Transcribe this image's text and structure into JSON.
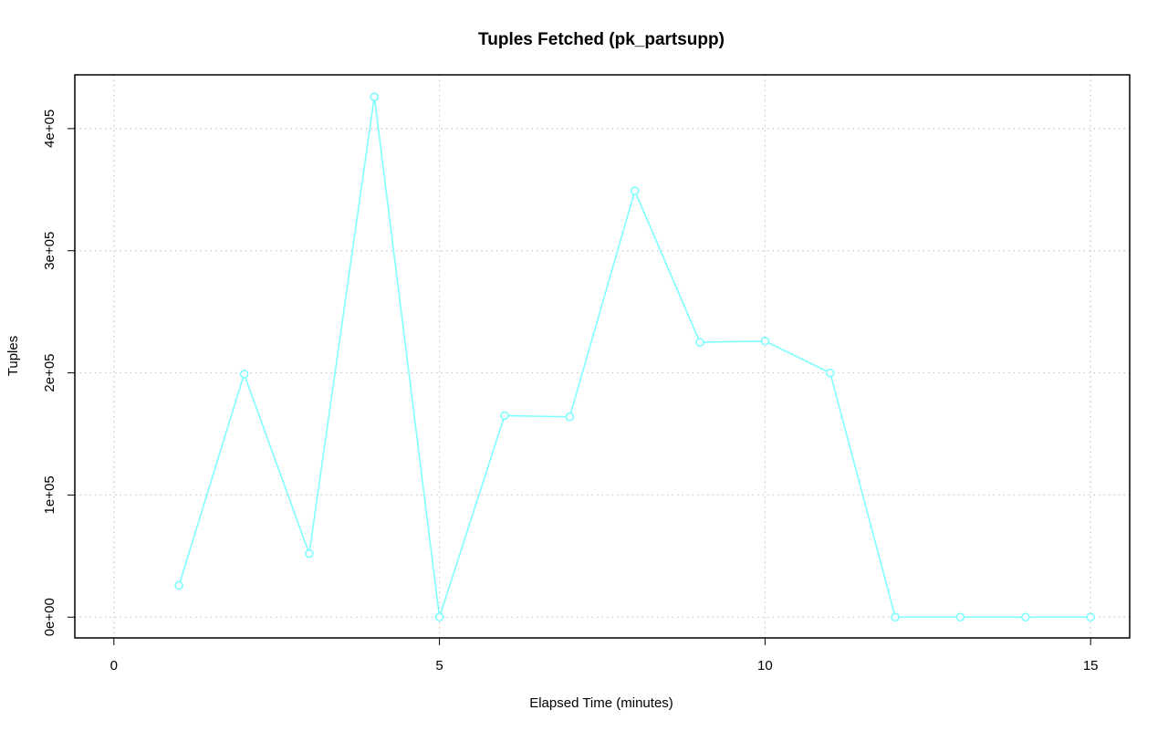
{
  "chart_data": {
    "type": "line",
    "title": "Tuples Fetched (pk_partsupp)",
    "xlabel": "Elapsed Time (minutes)",
    "ylabel": "Tuples",
    "xlim": [
      -0.6,
      15.6
    ],
    "ylim": [
      -17000,
      444000
    ],
    "x_ticks": [
      0,
      5,
      10,
      15
    ],
    "x_tick_labels": [
      "0",
      "5",
      "10",
      "15"
    ],
    "y_ticks": [
      0,
      100000,
      200000,
      300000,
      400000
    ],
    "y_tick_labels": [
      "0e+00",
      "1e+05",
      "2e+05",
      "3e+05",
      "4e+05"
    ],
    "grid": true,
    "series": [
      {
        "color": "#7fffff",
        "marker": "open-circle",
        "x": [
          1,
          2,
          3,
          4,
          5,
          6,
          7,
          8,
          9,
          10,
          11,
          12,
          13,
          14,
          15
        ],
        "y": [
          26000,
          199000,
          52000,
          426000,
          0,
          165000,
          164000,
          349000,
          225000,
          226000,
          200000,
          0,
          0,
          0,
          0
        ]
      }
    ]
  }
}
